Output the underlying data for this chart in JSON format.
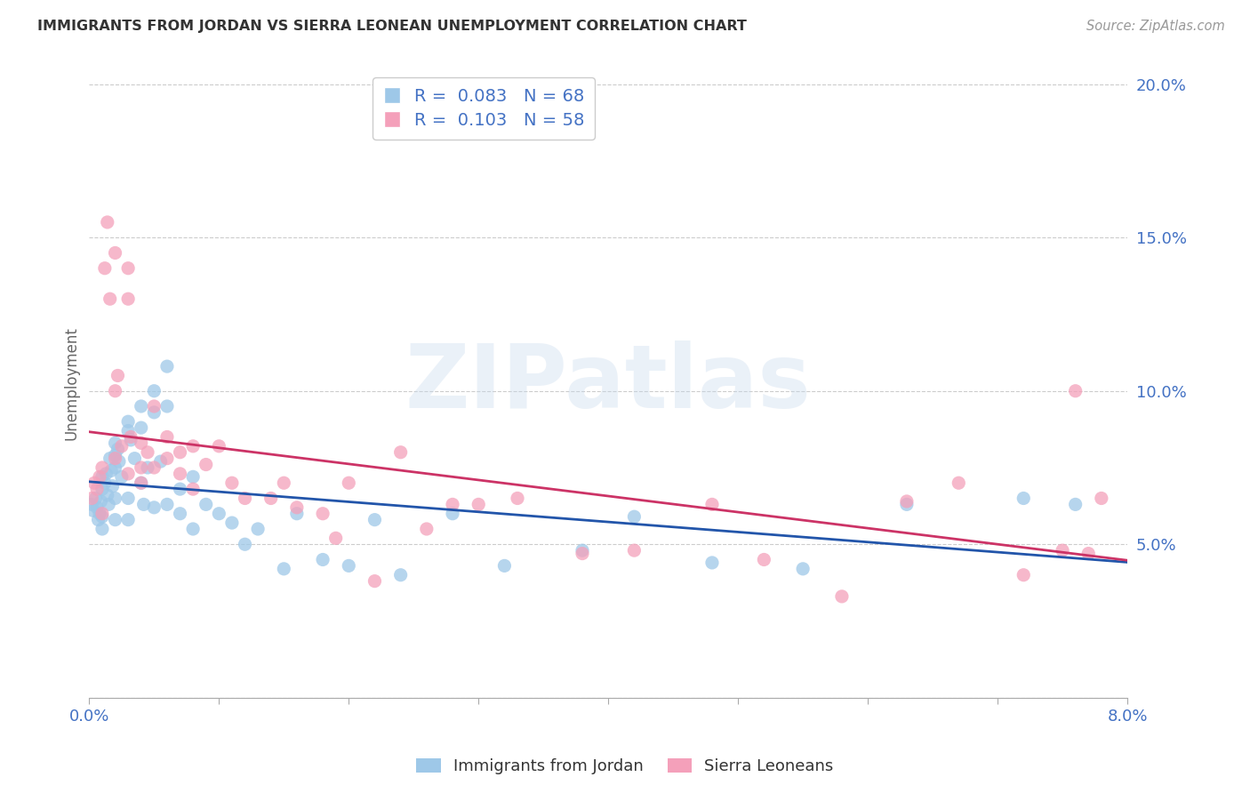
{
  "title": "IMMIGRANTS FROM JORDAN VS SIERRA LEONEAN UNEMPLOYMENT CORRELATION CHART",
  "source": "Source: ZipAtlas.com",
  "ylabel_label": "Unemployment",
  "watermark": "ZIPatlas",
  "legend_entries": [
    {
      "label": "Immigrants from Jordan",
      "color": "#9ec8e8",
      "R": "0.083",
      "N": "68"
    },
    {
      "label": "Sierra Leoneans",
      "color": "#f4a0ba",
      "R": "0.103",
      "N": "58"
    }
  ],
  "blue_scatter_color": "#9ec8e8",
  "pink_scatter_color": "#f4a0ba",
  "blue_line_color": "#2255aa",
  "pink_line_color": "#cc3366",
  "background_color": "#ffffff",
  "grid_color": "#cccccc",
  "axis_label_color": "#4472c4",
  "title_color": "#333333",
  "xlim": [
    0.0,
    0.08
  ],
  "ylim": [
    0.0,
    0.205
  ],
  "xticks": [
    0.0,
    0.01,
    0.02,
    0.03,
    0.04,
    0.05,
    0.06,
    0.07,
    0.08
  ],
  "xticklabels": [
    "0.0%",
    "",
    "",
    "",
    "",
    "",
    "",
    "",
    "8.0%"
  ],
  "yticks": [
    0.0,
    0.05,
    0.1,
    0.15,
    0.2
  ],
  "yticklabels": [
    "",
    "5.0%",
    "10.0%",
    "15.0%",
    "20.0%"
  ],
  "jordan_x": [
    0.0002,
    0.0003,
    0.0005,
    0.0006,
    0.0007,
    0.0008,
    0.0009,
    0.001,
    0.001,
    0.001,
    0.001,
    0.0012,
    0.0013,
    0.0014,
    0.0015,
    0.0016,
    0.0017,
    0.0018,
    0.002,
    0.002,
    0.002,
    0.002,
    0.002,
    0.0022,
    0.0023,
    0.0025,
    0.003,
    0.003,
    0.003,
    0.003,
    0.0032,
    0.0035,
    0.004,
    0.004,
    0.004,
    0.0042,
    0.0045,
    0.005,
    0.005,
    0.005,
    0.0055,
    0.006,
    0.006,
    0.006,
    0.007,
    0.007,
    0.008,
    0.008,
    0.009,
    0.01,
    0.011,
    0.012,
    0.013,
    0.015,
    0.016,
    0.018,
    0.02,
    0.022,
    0.024,
    0.028,
    0.032,
    0.038,
    0.042,
    0.048,
    0.055,
    0.063,
    0.072,
    0.076
  ],
  "jordan_y": [
    0.063,
    0.061,
    0.065,
    0.062,
    0.058,
    0.06,
    0.064,
    0.068,
    0.072,
    0.059,
    0.055,
    0.07,
    0.073,
    0.066,
    0.063,
    0.078,
    0.074,
    0.069,
    0.083,
    0.079,
    0.075,
    0.065,
    0.058,
    0.081,
    0.077,
    0.072,
    0.09,
    0.087,
    0.065,
    0.058,
    0.084,
    0.078,
    0.095,
    0.088,
    0.07,
    0.063,
    0.075,
    0.1,
    0.093,
    0.062,
    0.077,
    0.108,
    0.095,
    0.063,
    0.068,
    0.06,
    0.072,
    0.055,
    0.063,
    0.06,
    0.057,
    0.05,
    0.055,
    0.042,
    0.06,
    0.045,
    0.043,
    0.058,
    0.04,
    0.06,
    0.043,
    0.048,
    0.059,
    0.044,
    0.042,
    0.063,
    0.065,
    0.063
  ],
  "sierra_x": [
    0.0002,
    0.0004,
    0.0006,
    0.0008,
    0.001,
    0.001,
    0.0012,
    0.0014,
    0.0016,
    0.002,
    0.002,
    0.002,
    0.0022,
    0.0025,
    0.003,
    0.003,
    0.003,
    0.0032,
    0.004,
    0.004,
    0.004,
    0.0045,
    0.005,
    0.005,
    0.006,
    0.006,
    0.007,
    0.007,
    0.008,
    0.008,
    0.009,
    0.01,
    0.011,
    0.012,
    0.014,
    0.015,
    0.016,
    0.018,
    0.019,
    0.02,
    0.022,
    0.024,
    0.026,
    0.028,
    0.03,
    0.033,
    0.038,
    0.042,
    0.048,
    0.052,
    0.058,
    0.063,
    0.067,
    0.072,
    0.075,
    0.076,
    0.077,
    0.078
  ],
  "sierra_y": [
    0.065,
    0.07,
    0.068,
    0.072,
    0.075,
    0.06,
    0.14,
    0.155,
    0.13,
    0.145,
    0.1,
    0.078,
    0.105,
    0.082,
    0.14,
    0.13,
    0.073,
    0.085,
    0.083,
    0.075,
    0.07,
    0.08,
    0.095,
    0.075,
    0.085,
    0.078,
    0.08,
    0.073,
    0.082,
    0.068,
    0.076,
    0.082,
    0.07,
    0.065,
    0.065,
    0.07,
    0.062,
    0.06,
    0.052,
    0.07,
    0.038,
    0.08,
    0.055,
    0.063,
    0.063,
    0.065,
    0.047,
    0.048,
    0.063,
    0.045,
    0.033,
    0.064,
    0.07,
    0.04,
    0.048,
    0.1,
    0.047,
    0.065
  ]
}
